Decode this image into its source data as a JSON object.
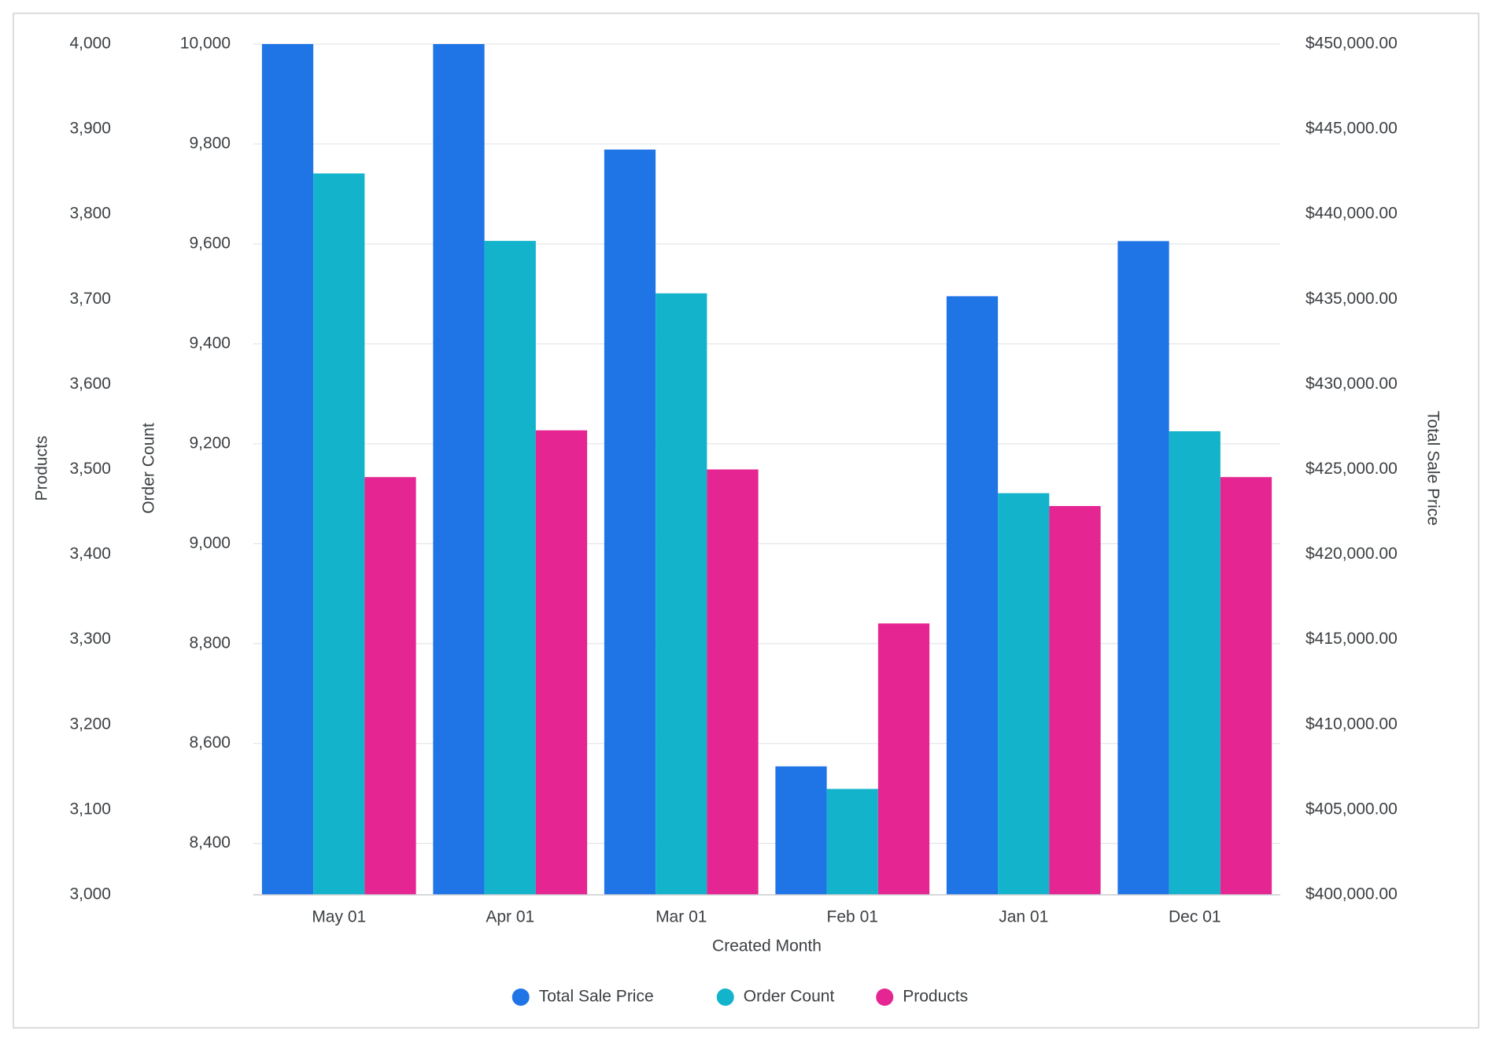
{
  "chart_data": {
    "type": "bar",
    "xlabel": "Created Month",
    "categories": [
      "May 01",
      "Apr 01",
      "Mar 01",
      "Feb 01",
      "Jan 01",
      "Dec 01"
    ],
    "series": [
      {
        "name": "Total Sale Price",
        "color": "#1f74e6",
        "axis": "y2",
        "values": [
          450000,
          450000,
          443800,
          407550,
          435180,
          438420
        ]
      },
      {
        "name": "Order Count",
        "color": "#12b3cb",
        "axis": "y",
        "values": [
          9741,
          9606,
          9501,
          8509,
          9101,
          9225
        ]
      },
      {
        "name": "Products",
        "color": "#e52592",
        "axis": "y3",
        "values": [
          3491,
          3546,
          3500,
          3319,
          3457,
          3491
        ]
      }
    ],
    "ylabel": "Order Count",
    "ylim": [
      8297,
      10000
    ],
    "yticks": [
      {
        "value": 8400,
        "label": "8,400"
      },
      {
        "value": 8600,
        "label": "8,600"
      },
      {
        "value": 8800,
        "label": "8,800"
      },
      {
        "value": 9000,
        "label": "9,000"
      },
      {
        "value": 9200,
        "label": "9,200"
      },
      {
        "value": 9400,
        "label": "9,400"
      },
      {
        "value": 9600,
        "label": "9,600"
      },
      {
        "value": 9800,
        "label": "9,800"
      },
      {
        "value": 10000,
        "label": "10,000"
      }
    ],
    "y2label": "Total Sale Price",
    "y2lim": [
      400000,
      450000
    ],
    "y2ticks": [
      {
        "value": 400000,
        "label": "$400,000.00"
      },
      {
        "value": 405000,
        "label": "$405,000.00"
      },
      {
        "value": 410000,
        "label": "$410,000.00"
      },
      {
        "value": 415000,
        "label": "$415,000.00"
      },
      {
        "value": 420000,
        "label": "$420,000.00"
      },
      {
        "value": 425000,
        "label": "$425,000.00"
      },
      {
        "value": 430000,
        "label": "$430,000.00"
      },
      {
        "value": 435000,
        "label": "$435,000.00"
      },
      {
        "value": 440000,
        "label": "$440,000.00"
      },
      {
        "value": 445000,
        "label": "$445,000.00"
      },
      {
        "value": 450000,
        "label": "$450,000.00"
      }
    ],
    "y3label": "Products",
    "y3lim": [
      3000,
      4000
    ],
    "y3ticks": [
      {
        "value": 3000,
        "label": "3,000"
      },
      {
        "value": 3100,
        "label": "3,100"
      },
      {
        "value": 3200,
        "label": "3,200"
      },
      {
        "value": 3300,
        "label": "3,300"
      },
      {
        "value": 3400,
        "label": "3,400"
      },
      {
        "value": 3500,
        "label": "3,500"
      },
      {
        "value": 3600,
        "label": "3,600"
      },
      {
        "value": 3700,
        "label": "3,700"
      },
      {
        "value": 3800,
        "label": "3,800"
      },
      {
        "value": 3900,
        "label": "3,900"
      },
      {
        "value": 4000,
        "label": "4,000"
      }
    ],
    "grid": true
  }
}
